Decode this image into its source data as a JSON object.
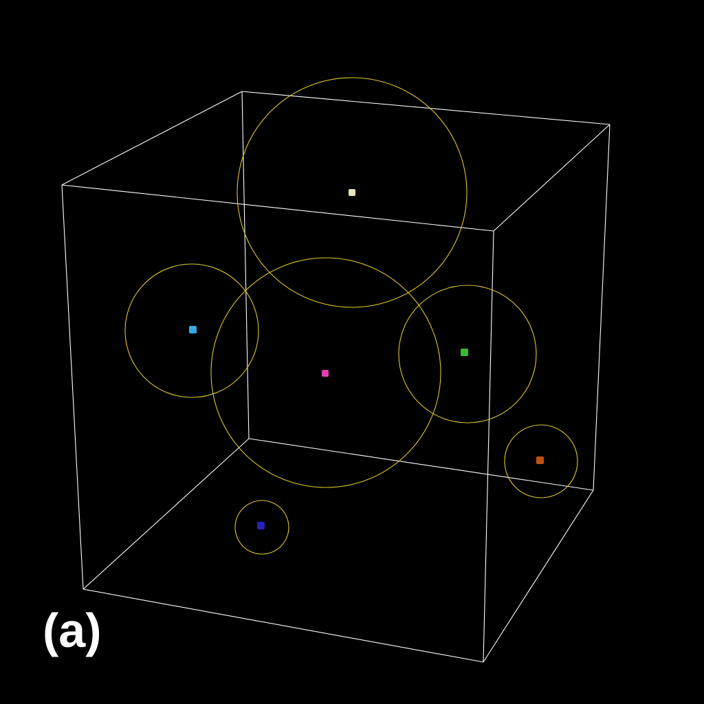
{
  "figure": {
    "panel_label": "(a)",
    "background_color": "#000000",
    "box_edge_color": "#ffffff",
    "sphere_outline_color": "#e0c832"
  },
  "particles": [
    {
      "name": "cream-particle",
      "color": "#e8e4b8"
    },
    {
      "name": "cyan-particle",
      "color": "#3aa8e0"
    },
    {
      "name": "magenta-particle",
      "color": "#e040b0"
    },
    {
      "name": "green-particle",
      "color": "#3cb830"
    },
    {
      "name": "orange-particle",
      "color": "#c05010"
    },
    {
      "name": "blue-particle",
      "color": "#2820b8"
    }
  ]
}
